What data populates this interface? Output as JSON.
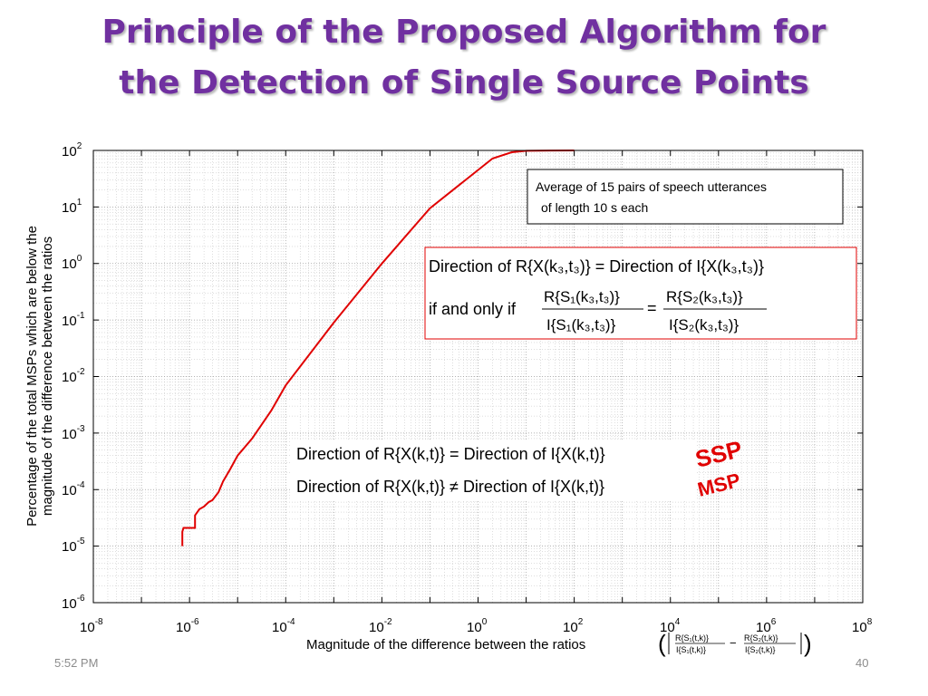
{
  "slide": {
    "title_line1": "Principle of the Proposed Algorithm for",
    "title_line2": "the Detection of Single Source Points",
    "footer_time": "5:52 PM",
    "footer_page": "40"
  },
  "colors": {
    "title": "#7030a0",
    "curve": "#e00000",
    "annotation": "#e00000",
    "box_border": "#e00000"
  },
  "annotations": {
    "legend_box_line1": "Average of 15 pairs of speech utterances",
    "legend_box_line2": "of length 10 s  each",
    "eq1_line1_left": "Direction of  R{X(k₃,t₃)} = Direction of  I{X(k₃,t₃)}",
    "eq1_line2_prefix": "if and only if",
    "eq1_frac1_num": "R{S₁(k₃,t₃)}",
    "eq1_frac1_den": "I{S₁(k₃,t₃)}",
    "eq1_frac2_num": "R{S₂(k₃,t₃)}",
    "eq1_frac2_den": "I{S₂(k₃,t₃)}",
    "eq2_line1": "Direction of  R{X(k,t)} = Direction of  I{X(k,t)}",
    "eq2_line2": "Direction of  R{X(k,t)} ≠ Direction of  I{X(k,t)}",
    "ssp_label": "SSP",
    "msp_label": "MSP",
    "xlabel_formula_a_num": "R{S₁(t,k)}",
    "xlabel_formula_a_den": "I{S₁(t,k)}",
    "xlabel_formula_b_num": "R{S₂(t,k)}",
    "xlabel_formula_b_den": "I{S₂(t,k)}"
  },
  "chart_data": {
    "type": "line",
    "title": "",
    "xlabel": "Magnitude of the difference between the ratios",
    "ylabel_line1": "Percentage of the total MSPs which are below the",
    "ylabel_line2": "magnitude of the difference between the ratios",
    "x_scale": "log",
    "y_scale": "log",
    "xlim": [
      1e-08,
      100000000.0
    ],
    "ylim": [
      1e-06,
      100
    ],
    "grid": true,
    "x_ticks": [
      {
        "base": "10",
        "exp": "-8"
      },
      {
        "base": "10",
        "exp": "-6"
      },
      {
        "base": "10",
        "exp": "-4"
      },
      {
        "base": "10",
        "exp": "-2"
      },
      {
        "base": "10",
        "exp": "0"
      },
      {
        "base": "10",
        "exp": "2"
      },
      {
        "base": "10",
        "exp": "4"
      },
      {
        "base": "10",
        "exp": "6"
      },
      {
        "base": "10",
        "exp": "8"
      }
    ],
    "y_ticks": [
      {
        "base": "10",
        "exp": "2"
      },
      {
        "base": "10",
        "exp": "1"
      },
      {
        "base": "10",
        "exp": "0"
      },
      {
        "base": "10",
        "exp": "-1"
      },
      {
        "base": "10",
        "exp": "-2"
      },
      {
        "base": "10",
        "exp": "-3"
      },
      {
        "base": "10",
        "exp": "-4"
      },
      {
        "base": "10",
        "exp": "-5"
      },
      {
        "base": "10",
        "exp": "-6"
      }
    ],
    "series": [
      {
        "color": "#e00000",
        "x": [
          7.1e-07,
          7.1e-07,
          7.5e-07,
          1.3e-06,
          1.3e-06,
          1.6e-06,
          2e-06,
          2.5e-06,
          3e-06,
          4e-06,
          5e-06,
          7e-06,
          1e-05,
          2e-05,
          5e-05,
          0.0001,
          0.001,
          0.01,
          0.1,
          1,
          2,
          5,
          10,
          30,
          100
        ],
        "y": [
          1e-05,
          1.8e-05,
          2.1e-05,
          2.1e-05,
          3.5e-05,
          4.5e-05,
          5e-05,
          6e-05,
          6.5e-05,
          9e-05,
          0.00014,
          0.00023,
          0.0004,
          0.0008,
          0.0025,
          0.007,
          0.09,
          1.0,
          9.5,
          45,
          72,
          93,
          98.5,
          99.8,
          100
        ]
      }
    ]
  }
}
